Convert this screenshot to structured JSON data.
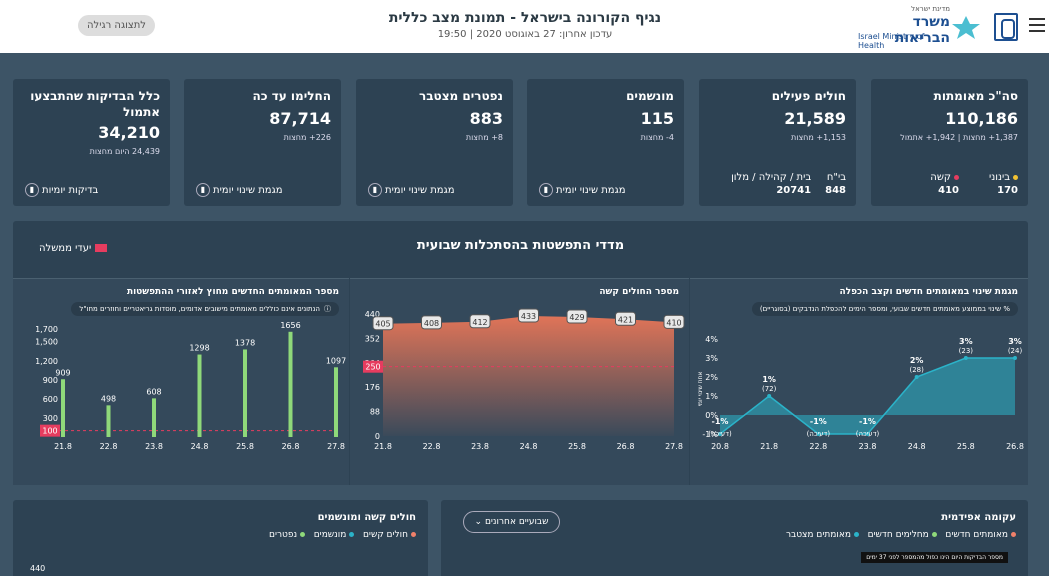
{
  "header": {
    "title": "נגיף הקורונה בישראל - תמונת מצב כללית",
    "updated": "עדכון אחרון: 27 באוגוסט 2020 | 19:50",
    "regular_view": "לתצוגה רגילה",
    "logo_small": "מדינת ישראל",
    "logo_he": "משרד הבריאות",
    "logo_en": "Israel Ministry of Health"
  },
  "cards": [
    {
      "label": "סה\"כ מאומתות",
      "value": "110,186",
      "sub": "1,387+ מחצות | 1,942+ אתמול",
      "stats": [
        {
          "label": "בינוני",
          "value": "170",
          "color": "#f1c232"
        },
        {
          "label": "קשה",
          "value": "410",
          "color": "#e63c5f"
        }
      ]
    },
    {
      "label": "חולים פעילים",
      "value": "21,589",
      "sub": "1,153+ מחצות",
      "stats": [
        {
          "label": "בי\"ח",
          "value": "848"
        },
        {
          "label": "בית / קהילה / מלון",
          "value": "20741"
        }
      ]
    },
    {
      "label": "מונשמים",
      "value": "115",
      "sub": "4- מחצות",
      "link": "מגמת שינוי יומית"
    },
    {
      "label": "נפטרים מצטבר",
      "value": "883",
      "sub": "8+ מחצות",
      "link": "מגמת שינוי יומית"
    },
    {
      "label": "החלימו עד כה",
      "value": "87,714",
      "sub": "226+ מחצות",
      "link": "מגמת שינוי יומית"
    },
    {
      "label": "כלל הבדיקות שהתבצעו אתמול",
      "value": "34,210",
      "sub": "24,439 היום מחצות",
      "link": "בדיקות יומיות"
    }
  ],
  "section": {
    "title": "מדדי התפשטות בהסתכלות שבועית",
    "legend": "יעדי ממשלה"
  },
  "panels": {
    "change": {
      "title": "מגמת שינוי במאומתים חדשים וקצב הכפלה",
      "note": "% שינוי בממוצע מאומתים חדשים שבועי, ומספר הימים להכפלת הנדבקים (בסוגריים)",
      "ylabel": "אחוז שינוי יומי"
    },
    "severe": {
      "title": "מספר החולים קשה"
    },
    "areas": {
      "title": "מספר המאומתים החדשים מחוץ לאזורי ההתפשטות",
      "note": "הנתונים אינם כוללים מאומתים מישובים אדומים, מוסדות גריאטריים וחוזרים מחו\"ל"
    }
  },
  "chart_data": [
    {
      "type": "area",
      "title": "מגמת שינוי במאומתים חדשים וקצב הכפלה",
      "x": [
        "20.8",
        "21.8",
        "22.8",
        "23.8",
        "24.8",
        "25.8",
        "26.8"
      ],
      "values": [
        -1,
        1,
        -1,
        -1,
        2,
        3,
        3
      ],
      "labels": [
        "-1%",
        "1%",
        "-1%",
        "-1%",
        "2%",
        "3%",
        "3%"
      ],
      "sublabels": [
        "(דעיכה)",
        "(72)",
        "(דעיכה)",
        "(דעיכה)",
        "(28)",
        "(23)",
        "(24)"
      ],
      "yticks": [
        "4%",
        "3%",
        "2%",
        "1%",
        "0%",
        "-1%"
      ],
      "ylim": [
        -1,
        4
      ]
    },
    {
      "type": "area",
      "title": "מספר החולים קשה",
      "x": [
        "21.8",
        "22.8",
        "23.8",
        "24.8",
        "25.8",
        "26.8",
        "27.8"
      ],
      "values": [
        405,
        408,
        412,
        433,
        429,
        421,
        410
      ],
      "yticks": [
        "440",
        "352",
        "264",
        "176",
        "88",
        "0"
      ],
      "ylim": [
        0,
        440
      ],
      "target": 250
    },
    {
      "type": "bar",
      "title": "מספר המאומתים החדשים מחוץ לאזורי ההתפשטות",
      "x": [
        "21.8",
        "22.8",
        "23.8",
        "24.8",
        "25.8",
        "26.8",
        "27.8"
      ],
      "values": [
        909,
        498,
        608,
        1298,
        1378,
        1656,
        1097
      ],
      "yticks": [
        "1,700",
        "1,500",
        "1,200",
        "900",
        "600",
        "300"
      ],
      "ylim": [
        0,
        1700
      ],
      "target": 100
    }
  ],
  "bottom": {
    "severe": {
      "title": "חולים קשה ומונשמים",
      "legend": [
        "חולים קשים",
        "מונשמים",
        "נפטרים"
      ],
      "y_top": "440"
    },
    "epi": {
      "title": "עקומה אפידמית",
      "legend": [
        "מאומתים חדשים",
        "מחלימים חדשים",
        "מאומתים מצטבר"
      ],
      "select": "שבועיים אחרונים",
      "tooltip": "מספר הבדיקות היום הינו כפול מהמספר לפני 37 ימים"
    }
  }
}
